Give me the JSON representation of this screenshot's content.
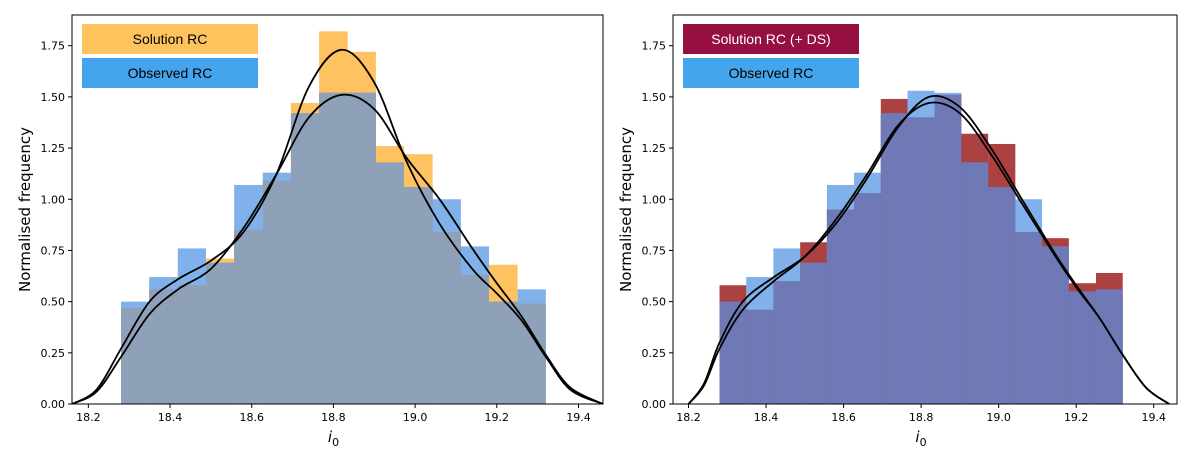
{
  "colors": {
    "solution": "#ffa81e",
    "observed": "#4a90e2",
    "solution_ds": "#961212",
    "overlap_left": "#8fa1b8",
    "overlap_right": "#6e79b5",
    "legend_solution": "#ffc35e",
    "legend_observed": "#45a5ec",
    "legend_solution_ds": "#950f41",
    "kde": "#000000"
  },
  "chart_data": [
    {
      "type": "bar",
      "title": "",
      "xlabel": "i_0",
      "xlabel_main": "i",
      "xlabel_sub": "0",
      "ylabel": "Normalised frequency",
      "xlim": [
        18.16,
        19.46
      ],
      "ylim": [
        0,
        1.9
      ],
      "xticks": [
        "18.2",
        "18.4",
        "18.6",
        "18.8",
        "19.0",
        "19.2",
        "19.4"
      ],
      "yticks": [
        "0.00",
        "0.25",
        "0.50",
        "0.75",
        "1.00",
        "1.25",
        "1.50",
        "1.75"
      ],
      "legend": [
        "Solution RC",
        "Observed RC"
      ],
      "legend_position": "top-left",
      "bin_edges": [
        18.28,
        18.349,
        18.419,
        18.488,
        18.557,
        18.627,
        18.696,
        18.765,
        18.835,
        18.904,
        18.973,
        19.043,
        19.112,
        19.181,
        19.251,
        19.32
      ],
      "series": [
        {
          "name": "Solution RC",
          "values": [
            0.47,
            0.56,
            0.58,
            0.71,
            0.85,
            1.09,
            1.47,
            1.82,
            1.72,
            1.26,
            1.22,
            0.84,
            0.63,
            0.68,
            0.49
          ]
        },
        {
          "name": "Observed RC",
          "values": [
            0.5,
            0.62,
            0.76,
            0.69,
            1.07,
            1.13,
            1.42,
            1.52,
            1.52,
            1.18,
            1.06,
            1.0,
            0.77,
            0.5,
            0.56
          ]
        }
      ],
      "kde_x": [
        18.16,
        18.22,
        18.28,
        18.35,
        18.42,
        18.5,
        18.58,
        18.66,
        18.74,
        18.82,
        18.9,
        18.98,
        19.06,
        19.14,
        19.2,
        19.26,
        19.32,
        19.38,
        19.46
      ],
      "kde": [
        {
          "name": "Solution RC KDE",
          "values": [
            0.0,
            0.07,
            0.27,
            0.5,
            0.61,
            0.7,
            0.84,
            1.12,
            1.55,
            1.73,
            1.57,
            1.18,
            0.88,
            0.66,
            0.54,
            0.41,
            0.23,
            0.07,
            0.0
          ]
        },
        {
          "name": "Observed RC KDE",
          "values": [
            0.0,
            0.06,
            0.23,
            0.44,
            0.56,
            0.66,
            0.86,
            1.12,
            1.4,
            1.51,
            1.44,
            1.2,
            1.0,
            0.76,
            0.59,
            0.43,
            0.24,
            0.08,
            0.0
          ]
        }
      ]
    },
    {
      "type": "bar",
      "title": "",
      "xlabel": "i_0",
      "xlabel_main": "i",
      "xlabel_sub": "0",
      "ylabel": "Normalised frequency",
      "xlim": [
        18.16,
        19.46
      ],
      "ylim": [
        0,
        1.9
      ],
      "xticks": [
        "18.2",
        "18.4",
        "18.6",
        "18.8",
        "19.0",
        "19.2",
        "19.4"
      ],
      "yticks": [
        "0.00",
        "0.25",
        "0.50",
        "0.75",
        "1.00",
        "1.25",
        "1.50",
        "1.75"
      ],
      "legend": [
        "Solution RC (+ DS)",
        "Observed RC"
      ],
      "legend_position": "top-left",
      "bin_edges": [
        18.28,
        18.349,
        18.419,
        18.488,
        18.557,
        18.627,
        18.696,
        18.765,
        18.835,
        18.904,
        18.973,
        19.043,
        19.112,
        19.181,
        19.251,
        19.32
      ],
      "series": [
        {
          "name": "Solution RC (+ DS)",
          "values": [
            0.58,
            0.46,
            0.6,
            0.79,
            0.95,
            1.03,
            1.49,
            1.4,
            1.51,
            1.32,
            1.27,
            0.84,
            0.81,
            0.59,
            0.64
          ]
        },
        {
          "name": "Observed RC",
          "values": [
            0.5,
            0.62,
            0.76,
            0.69,
            1.07,
            1.13,
            1.42,
            1.53,
            1.52,
            1.18,
            1.06,
            1.0,
            0.77,
            0.55,
            0.56
          ]
        }
      ],
      "kde_x": [
        18.2,
        18.24,
        18.28,
        18.34,
        18.42,
        18.5,
        18.58,
        18.66,
        18.74,
        18.82,
        18.9,
        18.98,
        19.06,
        19.14,
        19.2,
        19.26,
        19.32,
        19.38,
        19.44
      ],
      "kde": [
        {
          "name": "Solution RC (+ DS) KDE",
          "values": [
            0.0,
            0.1,
            0.3,
            0.5,
            0.62,
            0.72,
            0.88,
            1.1,
            1.35,
            1.5,
            1.45,
            1.25,
            1.0,
            0.75,
            0.58,
            0.42,
            0.24,
            0.08,
            0.0
          ]
        },
        {
          "name": "Observed RC KDE",
          "values": [
            0.0,
            0.09,
            0.27,
            0.46,
            0.6,
            0.72,
            0.9,
            1.12,
            1.36,
            1.47,
            1.42,
            1.22,
            0.98,
            0.74,
            0.57,
            0.42,
            0.24,
            0.08,
            0.0
          ]
        }
      ]
    }
  ]
}
